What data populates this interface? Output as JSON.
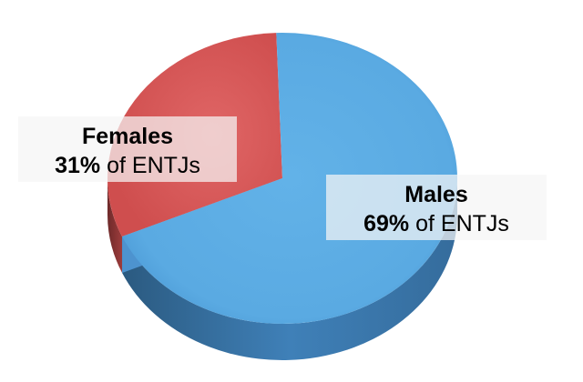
{
  "chart_data": {
    "type": "pie",
    "title": "",
    "slices": [
      {
        "name": "Females",
        "value": 31,
        "percent_text": "31%",
        "suffix": "of ENTJs",
        "color": "#d95b5b"
      },
      {
        "name": "Males",
        "value": 69,
        "percent_text": "69%",
        "suffix": "of ENTJs",
        "color": "#5aace4"
      }
    ]
  }
}
